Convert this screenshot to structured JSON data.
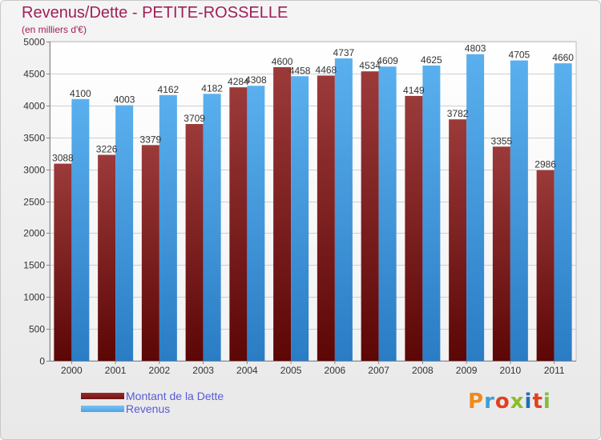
{
  "title": "Revenus/Dette - PETITE-ROSSELLE",
  "subtitle": "(en milliers d'€)",
  "logo": {
    "text": "Proxiti",
    "colors": [
      "#f08a1c",
      "#3aa0d8",
      "#e04020",
      "#8cbd2c",
      "#1f6fb8",
      "#e04020",
      "#7fbf3a"
    ]
  },
  "legend": [
    {
      "label": "Montant de la Dette",
      "color": "#6e1414"
    },
    {
      "label": "Revenus",
      "color": "#4aa3e6"
    }
  ],
  "chart_data": {
    "type": "bar",
    "title": "Revenus/Dette - PETITE-ROSSELLE",
    "subtitle": "(en milliers d'€)",
    "categories": [
      "2000",
      "2001",
      "2002",
      "2003",
      "2004",
      "2005",
      "2006",
      "2007",
      "2008",
      "2009",
      "2010",
      "2011"
    ],
    "series": [
      {
        "name": "Montant de la Dette",
        "color": "#6e1414",
        "values": [
          3088,
          3226,
          3379,
          3709,
          4284,
          4600,
          4468,
          4534,
          4149,
          3782,
          3355,
          2986
        ]
      },
      {
        "name": "Revenus",
        "color": "#4aa3e6",
        "values": [
          4100,
          4003,
          4162,
          4182,
          4308,
          4458,
          4737,
          4609,
          4625,
          4803,
          4705,
          4660
        ]
      }
    ],
    "ylim": [
      0,
      5000
    ],
    "yticks": [
      0,
      500,
      1000,
      1500,
      2000,
      2500,
      3000,
      3500,
      4000,
      4500,
      5000
    ],
    "grid": true,
    "legend_position": "bottom-left"
  }
}
